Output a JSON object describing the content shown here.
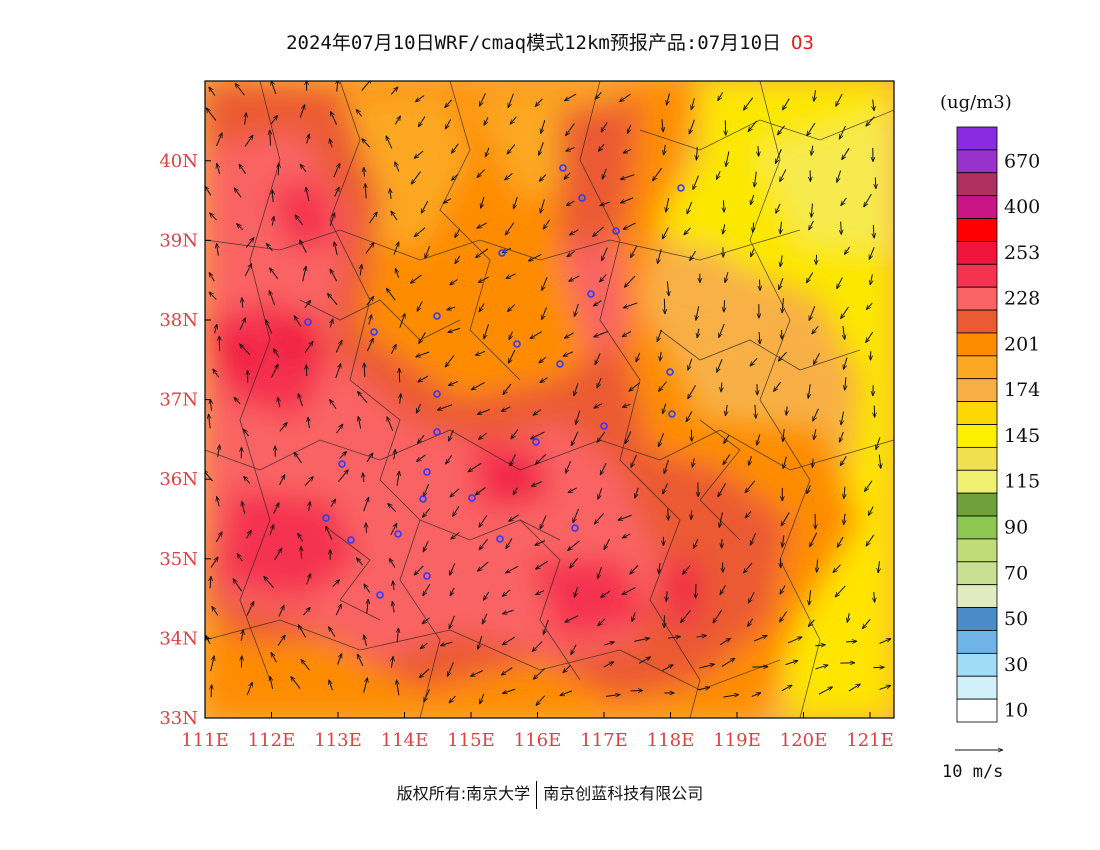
{
  "title": {
    "text": "2024年07月10日WRF/cmaq模式12km预报产品:07月10日",
    "species": "O3"
  },
  "colorbar": {
    "unit": "(ug/m3)",
    "bins": [
      {
        "color": "#8a2be2",
        "label": ""
      },
      {
        "color": "#9932cc",
        "label": "670"
      },
      {
        "color": "#b03060",
        "label": ""
      },
      {
        "color": "#c71585",
        "label": "400"
      },
      {
        "color": "#ff0000",
        "label": ""
      },
      {
        "color": "#f0143c",
        "label": "253"
      },
      {
        "color": "#f5324f",
        "label": ""
      },
      {
        "color": "#fa6464",
        "label": "228"
      },
      {
        "color": "#eb5a32",
        "label": ""
      },
      {
        "color": "#ff8c00",
        "label": "201"
      },
      {
        "color": "#fca822",
        "label": ""
      },
      {
        "color": "#f8b046",
        "label": "174"
      },
      {
        "color": "#ffd700",
        "label": ""
      },
      {
        "color": "#fff000",
        "label": "145"
      },
      {
        "color": "#f0e050",
        "label": ""
      },
      {
        "color": "#f0f070",
        "label": "115"
      },
      {
        "color": "#6ea03c",
        "label": ""
      },
      {
        "color": "#8cc850",
        "label": "90"
      },
      {
        "color": "#c0dc78",
        "label": ""
      },
      {
        "color": "#c8e090",
        "label": "70"
      },
      {
        "color": "#e0ecc0",
        "label": ""
      },
      {
        "color": "#4b8cc8",
        "label": "50"
      },
      {
        "color": "#6eb4e6",
        "label": ""
      },
      {
        "color": "#a0dcf5",
        "label": "30"
      },
      {
        "color": "#d2f0fa",
        "label": ""
      },
      {
        "color": "#ffffff",
        "label": "10"
      }
    ]
  },
  "axes": {
    "lon_ticks": [
      "111E",
      "112E",
      "113E",
      "114E",
      "115E",
      "116E",
      "117E",
      "118E",
      "119E",
      "120E",
      "121E"
    ],
    "lat_ticks": [
      "33N",
      "34N",
      "35N",
      "36N",
      "37N",
      "38N",
      "39N",
      "40N"
    ],
    "tick_color": "#e04040"
  },
  "vector_ref": {
    "label": "10 m/s"
  },
  "copyright": {
    "left": "版权所有:南京大学",
    "right": "南京创蓝科技有限公司"
  }
}
